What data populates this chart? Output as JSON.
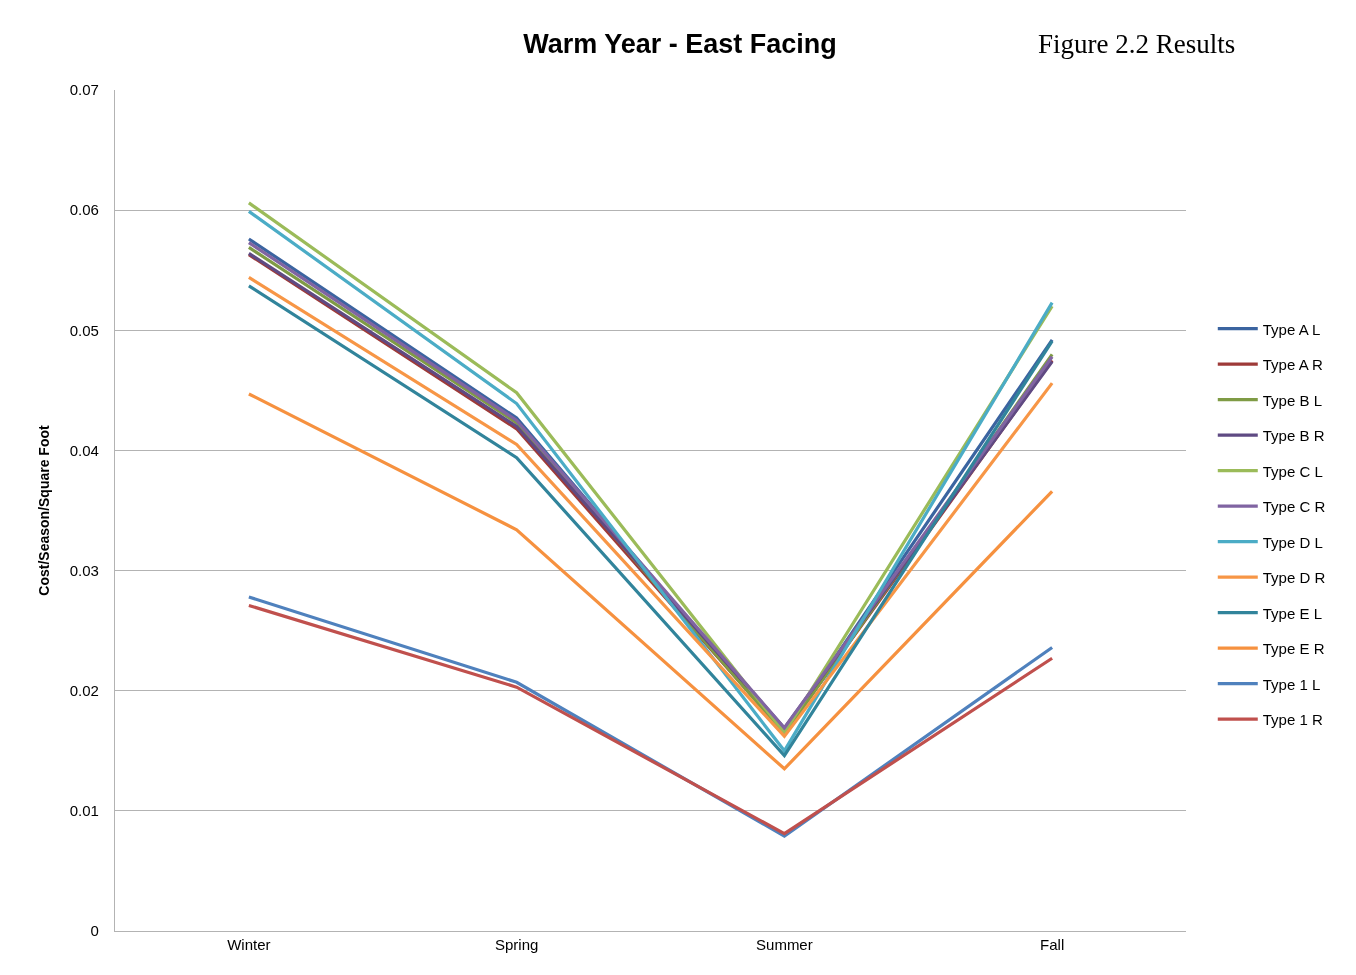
{
  "chart_data": {
    "type": "line",
    "title": "Warm Year - East Facing",
    "ylabel": "Cost/Season/Square Foot",
    "annotations": [
      "Figure 2.2 Results"
    ],
    "categories": [
      "Winter",
      "Spring",
      "Summer",
      "Fall"
    ],
    "series": [
      {
        "name": "Type A L",
        "color": "#3b64a0",
        "values": [
          0.0576,
          0.0427,
          0.0166,
          0.0492
        ]
      },
      {
        "name": "Type A R",
        "color": "#9e3a38",
        "values": [
          0.0563,
          0.0418,
          0.0165,
          0.0475
        ]
      },
      {
        "name": "Type B L",
        "color": "#7f9b45",
        "values": [
          0.0569,
          0.0423,
          0.0164,
          0.048
        ]
      },
      {
        "name": "Type B R",
        "color": "#5f4a83",
        "values": [
          0.0564,
          0.042,
          0.0169,
          0.0474
        ]
      },
      {
        "name": "Type C L",
        "color": "#9bbb59",
        "values": [
          0.0606,
          0.0448,
          0.0165,
          0.052
        ]
      },
      {
        "name": "Type C R",
        "color": "#8064a2",
        "values": [
          0.0573,
          0.0425,
          0.0169,
          0.0478
        ]
      },
      {
        "name": "Type D L",
        "color": "#4bacc6",
        "values": [
          0.0599,
          0.0439,
          0.015,
          0.0523
        ]
      },
      {
        "name": "Type D R",
        "color": "#f79646",
        "values": [
          0.0544,
          0.0405,
          0.0162,
          0.0456
        ]
      },
      {
        "name": "Type E L",
        "color": "#31849b",
        "values": [
          0.0537,
          0.0394,
          0.0146,
          0.0491
        ]
      },
      {
        "name": "Type E R",
        "color": "#f6913f",
        "values": [
          0.0447,
          0.0334,
          0.0135,
          0.0366
        ]
      },
      {
        "name": "Type 1 L",
        "color": "#4f81bd",
        "values": [
          0.0278,
          0.0207,
          0.0079,
          0.0236
        ]
      },
      {
        "name": "Type 1 R",
        "color": "#c0504d",
        "values": [
          0.0271,
          0.0203,
          0.0081,
          0.0227
        ]
      }
    ],
    "ylim": [
      0,
      0.07
    ],
    "yticks": [
      0,
      0.01,
      0.02,
      0.03,
      0.04,
      0.05,
      0.06,
      0.07
    ],
    "grid": "y",
    "legend": "right",
    "marker": "none",
    "line_style": "solid"
  }
}
